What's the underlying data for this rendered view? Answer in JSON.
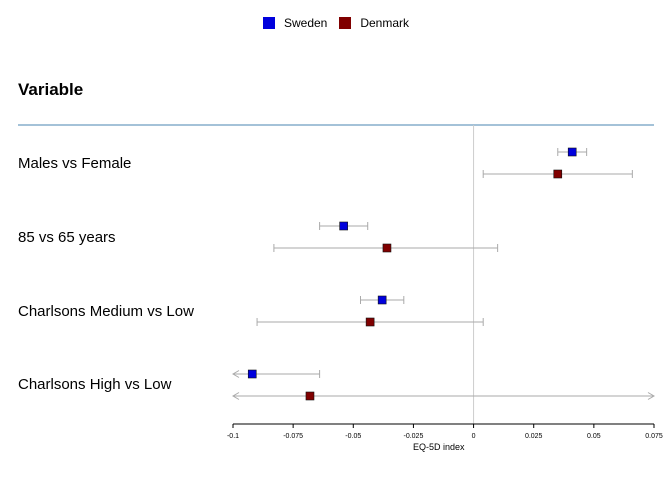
{
  "legend": {
    "items": [
      {
        "name": "Sweden",
        "color": "#0000dd"
      },
      {
        "name": "Denmark",
        "color": "#800000"
      }
    ]
  },
  "header": {
    "title": "Variable"
  },
  "chart_data": {
    "type": "forest",
    "xlabel": "EQ-5D index",
    "xlim": [
      -0.1,
      0.075
    ],
    "reference_line": 0,
    "x_ticks": [
      "-0.1",
      "-0.075",
      "-0.05",
      "-0.025",
      "0",
      "0.025",
      "0.05",
      "0.075"
    ],
    "x_tick_values": [
      -0.1,
      -0.075,
      -0.05,
      -0.025,
      0,
      0.025,
      0.05,
      0.075
    ],
    "rows": [
      {
        "label": "Males vs Female",
        "estimates": [
          {
            "series": "Sweden",
            "value": 0.041,
            "lower": 0.035,
            "upper": 0.047
          },
          {
            "series": "Denmark",
            "value": 0.035,
            "lower": 0.004,
            "upper": 0.066
          }
        ]
      },
      {
        "label": "85 vs 65 years",
        "estimates": [
          {
            "series": "Sweden",
            "value": -0.054,
            "lower": -0.064,
            "upper": -0.044
          },
          {
            "series": "Denmark",
            "value": -0.036,
            "lower": -0.083,
            "upper": 0.01
          }
        ]
      },
      {
        "label": "Charlsons Medium vs Low",
        "estimates": [
          {
            "series": "Sweden",
            "value": -0.038,
            "lower": -0.047,
            "upper": -0.029
          },
          {
            "series": "Denmark",
            "value": -0.043,
            "lower": -0.09,
            "upper": 0.004
          }
        ]
      },
      {
        "label": "Charlsons High vs Low",
        "estimates": [
          {
            "series": "Sweden",
            "value": -0.092,
            "lower": -0.1,
            "upper": -0.064,
            "lower_arrow": true
          },
          {
            "series": "Denmark",
            "value": -0.068,
            "lower": -0.1,
            "upper": 0.075,
            "lower_arrow": true,
            "upper_arrow": true
          }
        ]
      }
    ]
  }
}
